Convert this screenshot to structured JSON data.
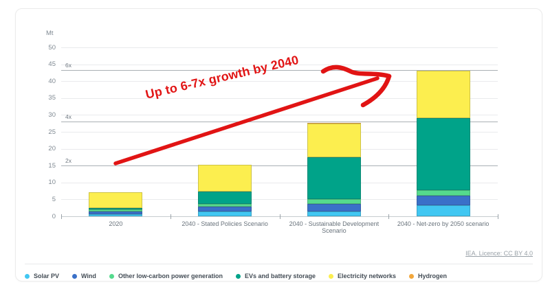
{
  "annotation": {
    "text": "Up to 6-7x growth by 2040",
    "color": "#e11414"
  },
  "footer": {
    "license_label": "IEA. Licence: CC BY 4.0"
  },
  "chart_data": {
    "type": "bar",
    "stacked": true,
    "title": "",
    "unit_label": "Mt",
    "xlabel": "",
    "ylabel": "Mt",
    "ylim": [
      0,
      50
    ],
    "ytick_step": 5,
    "grid": true,
    "legend_position": "bottom",
    "categories": [
      "2020",
      "2040 - Stated Policies Scenario",
      "2040 - Sustainable Development Scenario",
      "2040 - Net-zero by 2050 scenario"
    ],
    "series": [
      {
        "name": "Solar PV",
        "color": "#41c7f2",
        "values": [
          0.7,
          1.4,
          1.5,
          3.3
        ]
      },
      {
        "name": "Wind",
        "color": "#3a70c8",
        "values": [
          0.8,
          1.4,
          2.1,
          2.9
        ]
      },
      {
        "name": "Other low-carbon power generation",
        "color": "#55da8d",
        "values": [
          0.6,
          0.9,
          1.4,
          1.6
        ]
      },
      {
        "name": "EVs and battery storage",
        "color": "#00a389",
        "values": [
          0.4,
          3.6,
          12.4,
          21.3
        ]
      },
      {
        "name": "Electricity networks",
        "color": "#fcee4f",
        "values": [
          4.7,
          7.9,
          10.1,
          13.9
        ]
      },
      {
        "name": "Hydrogen",
        "color": "#f2a73c",
        "values": [
          0.0,
          0.0,
          0.1,
          0.1
        ]
      }
    ],
    "totals": [
      7.2,
      15.2,
      27.6,
      43.1
    ],
    "reference_lines": [
      {
        "label": "2x",
        "value": 15.0
      },
      {
        "label": "4x",
        "value": 28.0
      },
      {
        "label": "6x",
        "value": 43.2
      }
    ]
  }
}
